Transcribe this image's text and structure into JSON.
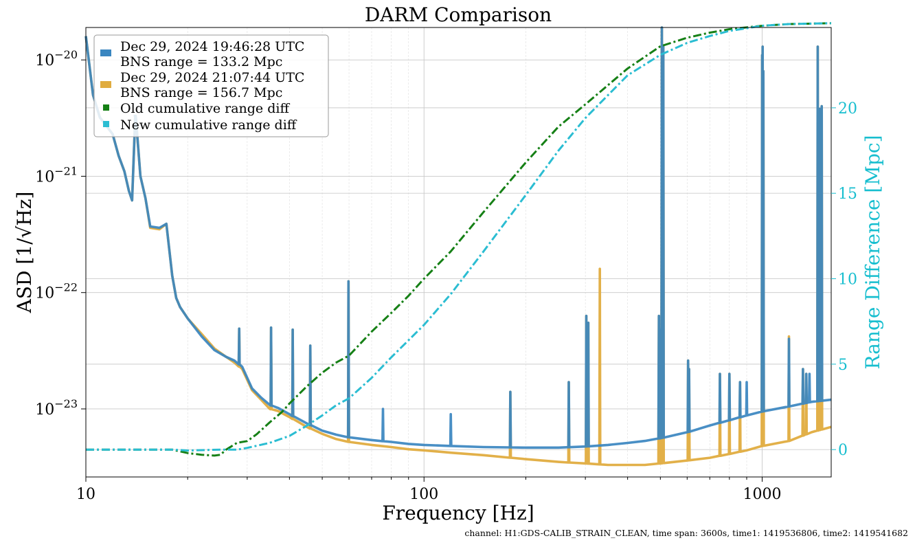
{
  "chart_data": {
    "type": "line",
    "title": "DARM Comparison",
    "xlabel": "Frequency [Hz]",
    "ylabel": "ASD [1/√Hz]",
    "ylabel_right": "Range Difference [Mpc]",
    "xscale": "log",
    "yscale": "log",
    "xlim": [
      10,
      1600
    ],
    "ylim": [
      2.6e-24,
      1.9e-20
    ],
    "ylim_right": [
      -1.6,
      24.7
    ],
    "x_ticks": [
      {
        "value": 10,
        "label": "10"
      },
      {
        "value": 100,
        "label": "100"
      },
      {
        "value": 1000,
        "label": "1000"
      }
    ],
    "y_ticks": [
      {
        "value": 1e-20,
        "base": "10",
        "exp": "−20"
      },
      {
        "value": 1e-21,
        "base": "10",
        "exp": "−21"
      },
      {
        "value": 1e-22,
        "base": "10",
        "exp": "−22"
      },
      {
        "value": 1e-23,
        "base": "10",
        "exp": "−23"
      }
    ],
    "y_ticks_right": [
      {
        "value": 0,
        "label": "0"
      },
      {
        "value": 5,
        "label": "5"
      },
      {
        "value": 10,
        "label": "10"
      },
      {
        "value": 15,
        "label": "15"
      },
      {
        "value": 20,
        "label": "20"
      }
    ],
    "grid": true,
    "legend_position": "top-left",
    "colors": {
      "old": "#3a86c0",
      "new": "#e0ac3f",
      "old_cum": "#168016",
      "new_cum": "#2bbdd2",
      "right_axis": "#17becf"
    },
    "series": [
      {
        "name_line1": "Dec 29, 2024 19:46:28 UTC",
        "name_line2": "BNS range = 133.2 Mpc",
        "axis": "left",
        "color": "#3a86c0",
        "x": [
          10,
          10.5,
          11,
          12,
          12.5,
          13,
          13.4,
          13.7,
          14.0,
          14.5,
          15,
          15.5,
          16.5,
          17.3,
          18,
          18.5,
          19,
          20,
          22,
          24,
          26,
          27.5,
          29,
          31,
          33,
          35,
          37,
          40,
          45,
          50,
          55,
          60,
          70,
          80,
          90,
          100,
          120,
          150,
          200,
          250,
          300,
          350,
          400,
          450,
          500,
          600,
          700,
          800,
          900,
          1000,
          1200,
          1400,
          1600
        ],
        "y": [
          1.6e-20,
          5e-21,
          3.2e-21,
          2.3e-21,
          1.5e-21,
          1.1e-21,
          7.5e-22,
          6.2e-22,
          3.3e-21,
          1e-21,
          6.5e-22,
          3.7e-22,
          3.6e-22,
          3.9e-22,
          1.4e-22,
          9e-23,
          7.5e-23,
          6e-23,
          4.2e-23,
          3.2e-23,
          2.8e-23,
          2.6e-23,
          2.3e-23,
          1.5e-23,
          1.25e-23,
          1.08e-23,
          1.02e-23,
          9e-24,
          7.5e-24,
          6.5e-24,
          6e-24,
          5.7e-24,
          5.4e-24,
          5.2e-24,
          5e-24,
          4.9e-24,
          4.8e-24,
          4.7e-24,
          4.65e-24,
          4.65e-24,
          4.75e-24,
          4.9e-24,
          5.1e-24,
          5.3e-24,
          5.6e-24,
          6.3e-24,
          7.2e-24,
          8e-24,
          8.8e-24,
          9.5e-24,
          1.05e-23,
          1.15e-23,
          1.2e-23
        ],
        "lines": [
          {
            "f": 14.0,
            "v": 3.3e-21
          },
          {
            "f": 28.4,
            "v": 4.9e-23
          },
          {
            "f": 35.3,
            "v": 5e-23
          },
          {
            "f": 40.9,
            "v": 4.8e-23
          },
          {
            "f": 46.1,
            "v": 3.5e-23
          },
          {
            "f": 59.8,
            "v": 1.25e-22
          },
          {
            "f": 75.6,
            "v": 1e-23
          },
          {
            "f": 120,
            "v": 9e-24
          },
          {
            "f": 180,
            "v": 1.4e-23
          },
          {
            "f": 268,
            "v": 1.7e-23
          },
          {
            "f": 302,
            "v": 6.3e-23
          },
          {
            "f": 306,
            "v": 5.5e-23
          },
          {
            "f": 495,
            "v": 6.3e-23
          },
          {
            "f": 500,
            "v": 4.8e-23
          },
          {
            "f": 505,
            "v": 1.9e-20
          },
          {
            "f": 510,
            "v": 1.3e-20
          },
          {
            "f": 604,
            "v": 2.6e-23
          },
          {
            "f": 608,
            "v": 2.2e-23
          },
          {
            "f": 750,
            "v": 2e-23
          },
          {
            "f": 800,
            "v": 2e-23
          },
          {
            "f": 860,
            "v": 1.7e-23
          },
          {
            "f": 900,
            "v": 1.7e-23
          },
          {
            "f": 1000,
            "v": 1.1e-20
          },
          {
            "f": 1003,
            "v": 1.3e-20
          },
          {
            "f": 1008,
            "v": 8e-21
          },
          {
            "f": 1200,
            "v": 4e-23
          },
          {
            "f": 1320,
            "v": 2.2e-23
          },
          {
            "f": 1350,
            "v": 2e-23
          },
          {
            "f": 1380,
            "v": 2e-23
          },
          {
            "f": 1460,
            "v": 1.3e-20
          },
          {
            "f": 1480,
            "v": 3.8e-21
          },
          {
            "f": 1500,
            "v": 4e-21
          }
        ]
      },
      {
        "name_line1": "Dec 29, 2024 21:07:44 UTC",
        "name_line2": "BNS range = 156.7 Mpc",
        "axis": "left",
        "color": "#e0ac3f",
        "x": [
          10,
          10.5,
          11,
          12,
          12.5,
          13,
          13.4,
          13.7,
          14.0,
          14.5,
          15,
          15.5,
          16.5,
          17.3,
          18,
          18.5,
          19,
          20,
          22,
          24,
          26,
          27.5,
          29,
          31,
          33,
          35,
          37,
          40,
          45,
          50,
          55,
          60,
          70,
          80,
          90,
          100,
          120,
          150,
          200,
          250,
          300,
          350,
          400,
          450,
          500,
          600,
          700,
          800,
          900,
          1000,
          1200,
          1400,
          1600
        ],
        "y": [
          1.6e-20,
          5e-21,
          3.2e-21,
          2.3e-21,
          1.5e-21,
          1.1e-21,
          7.5e-22,
          6.2e-22,
          3.3e-21,
          1e-21,
          6.5e-22,
          3.6e-22,
          3.5e-22,
          3.9e-22,
          1.4e-22,
          9e-23,
          7.5e-23,
          6e-23,
          4.4e-23,
          3.3e-23,
          2.8e-23,
          2.5e-23,
          2.2e-23,
          1.45e-23,
          1.2e-23,
          1e-23,
          9.6e-24,
          8.5e-24,
          7e-24,
          6.1e-24,
          5.5e-24,
          5.2e-24,
          4.9e-24,
          4.7e-24,
          4.5e-24,
          4.4e-24,
          4.2e-24,
          4e-24,
          3.7e-24,
          3.5e-24,
          3.4e-24,
          3.3e-24,
          3.3e-24,
          3.3e-24,
          3.4e-24,
          3.6e-24,
          3.8e-24,
          4.1e-24,
          4.4e-24,
          4.8e-24,
          5.3e-24,
          6.3e-24,
          7e-24
        ],
        "lines": [
          {
            "f": 14.0,
            "v": 3.3e-21
          },
          {
            "f": 28.4,
            "v": 4.9e-23
          },
          {
            "f": 35.3,
            "v": 5e-23
          },
          {
            "f": 40.9,
            "v": 4.8e-23
          },
          {
            "f": 46.1,
            "v": 3.5e-23
          },
          {
            "f": 59.8,
            "v": 1.25e-22
          },
          {
            "f": 180,
            "v": 1.4e-23
          },
          {
            "f": 268,
            "v": 1.7e-23
          },
          {
            "f": 302,
            "v": 6.3e-23
          },
          {
            "f": 306,
            "v": 5.5e-23
          },
          {
            "f": 331,
            "v": 1.6e-22
          },
          {
            "f": 495,
            "v": 6.3e-23
          },
          {
            "f": 500,
            "v": 4.8e-23
          },
          {
            "f": 505,
            "v": 1.9e-20
          },
          {
            "f": 510,
            "v": 1.3e-20
          },
          {
            "f": 604,
            "v": 2.6e-23
          },
          {
            "f": 608,
            "v": 2.2e-23
          },
          {
            "f": 750,
            "v": 2e-23
          },
          {
            "f": 800,
            "v": 2e-23
          },
          {
            "f": 860,
            "v": 1.7e-23
          },
          {
            "f": 1000,
            "v": 1.1e-20
          },
          {
            "f": 1003,
            "v": 1.3e-20
          },
          {
            "f": 1008,
            "v": 8e-21
          },
          {
            "f": 1200,
            "v": 4.2e-23
          },
          {
            "f": 1320,
            "v": 2.2e-23
          },
          {
            "f": 1350,
            "v": 2e-23
          },
          {
            "f": 1460,
            "v": 1.3e-20
          },
          {
            "f": 1480,
            "v": 3.8e-21
          },
          {
            "f": 1500,
            "v": 4e-21
          }
        ]
      },
      {
        "name": "Old cumulative range diff",
        "axis": "right",
        "color": "#168016",
        "style": "dashdot",
        "x": [
          10,
          15,
          18,
          20,
          22,
          24,
          25,
          26,
          27,
          28,
          30,
          32,
          35,
          38,
          40,
          45,
          50,
          55,
          60,
          70,
          80,
          90,
          100,
          120,
          150,
          200,
          250,
          300,
          400,
          500,
          600,
          700,
          800,
          1000,
          1200,
          1600
        ],
        "y": [
          0,
          0,
          0,
          -0.2,
          -0.3,
          -0.35,
          -0.3,
          0,
          0.2,
          0.4,
          0.5,
          0.9,
          1.6,
          2.2,
          2.7,
          3.7,
          4.5,
          5.1,
          5.5,
          6.9,
          8.0,
          9.0,
          10.0,
          11.6,
          13.9,
          16.8,
          18.9,
          20.2,
          22.3,
          23.6,
          24.1,
          24.4,
          24.6,
          24.8,
          24.9,
          24.95
        ]
      },
      {
        "name": "New cumulative range diff",
        "axis": "right",
        "color": "#2bbdd2",
        "style": "dashdot",
        "x": [
          10,
          18,
          20,
          25,
          28,
          30,
          35,
          40,
          45,
          50,
          55,
          60,
          70,
          80,
          90,
          100,
          120,
          150,
          200,
          250,
          300,
          400,
          500,
          600,
          700,
          800,
          1000,
          1200,
          1600
        ],
        "y": [
          0,
          0,
          -0.05,
          0,
          0,
          0.1,
          0.4,
          0.8,
          1.4,
          2.0,
          2.6,
          3.0,
          4.2,
          5.4,
          6.4,
          7.3,
          9.1,
          11.6,
          14.9,
          17.5,
          19.4,
          21.9,
          23.1,
          23.8,
          24.2,
          24.5,
          24.8,
          24.9,
          24.95
        ]
      }
    ],
    "footnote": "channel: H1:GDS-CALIB_STRAIN_CLEAN, time span: 3600s, time1: 1419536806, time2: 1419541682"
  }
}
